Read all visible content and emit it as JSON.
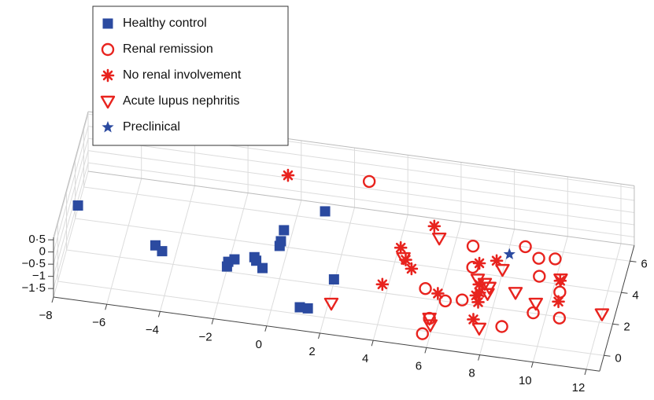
{
  "chart_data": {
    "type": "scatter3d",
    "xlim": [
      -8,
      12.5
    ],
    "ylim": [
      -1,
      7
    ],
    "zlim": [
      -1.85,
      0.6
    ],
    "xticks": [
      {
        "value": -8,
        "label": "−8"
      },
      {
        "value": -6,
        "label": "−6"
      },
      {
        "value": -4,
        "label": "−4"
      },
      {
        "value": -2,
        "label": "−2"
      },
      0,
      2,
      4,
      6,
      8,
      10,
      12
    ],
    "yticks": [
      0,
      2,
      4,
      6
    ],
    "zticks": [
      {
        "value": 0.5,
        "label": "0·5"
      },
      0,
      {
        "value": -0.5,
        "label": "−0·5"
      },
      {
        "value": -1,
        "label": "−1"
      },
      {
        "value": -1.5,
        "label": "−1·5"
      }
    ],
    "grid": true,
    "legend": "upper left",
    "series": [
      {
        "name": "Healthy control",
        "color": "#2b4aa0",
        "marker": "square",
        "x": [
          -7.7,
          -4.5,
          -4.2,
          -1.7,
          -1.7,
          -1.5,
          -0.8,
          -0.7,
          -0.4,
          0.0,
          0.0,
          0.0,
          1.3,
          2.3,
          1.1,
          1.4
        ],
        "y": [
          2.8,
          1.0,
          0.7,
          0.3,
          0.6,
          0.8,
          1.1,
          0.9,
          0.5,
          2.0,
          2.3,
          3.0,
          4.5,
          0.4,
          -0.1,
          -0.1
        ],
        "z": [
          -0.5,
          -0.5,
          -0.5,
          -0.5,
          -0.5,
          -0.5,
          -0.5,
          -0.5,
          -0.5,
          -0.5,
          -0.5,
          -0.5,
          -0.5,
          -0.5,
          -1.5,
          -1.5
        ]
      },
      {
        "name": "Renal remission",
        "color": "#e8231e",
        "marker": "circle",
        "x": [
          2.6,
          7.0,
          8.9,
          9.5,
          10.1,
          7.2,
          9.7,
          5.7,
          6.3,
          6.9,
          10.6,
          9.6,
          10.6,
          8.6,
          5.9,
          5.8
        ],
        "y": [
          6.7,
          3.6,
          4.0,
          3.4,
          3.5,
          2.3,
          2.3,
          0.6,
          1.5,
          1.7,
          1.5,
          1.5,
          1.4,
          0.4,
          0.3,
          -0.7
        ],
        "z": [
          -0.5,
          -0.5,
          -0.5,
          -0.5,
          -0.5,
          -0.5,
          -0.5,
          -0.5,
          -1.5,
          -1.5,
          -0.5,
          -1.5,
          -1.5,
          -1.5,
          -1.5,
          -1.5
        ]
      },
      {
        "name": "No renal involvement",
        "color": "#e8231e",
        "marker": "asterisk",
        "x": [
          -0.4,
          5.4,
          4.4,
          4.7,
          5.0,
          4.1,
          8.0,
          7.4,
          7.6,
          6.2,
          7.6,
          7.7,
          7.5,
          10.5,
          10.4,
          7.5
        ],
        "y": [
          6.4,
          4.5,
          2.9,
          2.2,
          1.7,
          0.5,
          2.9,
          2.6,
          1.3,
          0.4,
          0.6,
          0.8,
          1.7,
          2.2,
          2.4,
          0.6
        ],
        "z": [
          -0.5,
          -0.5,
          -0.5,
          -0.5,
          -0.5,
          -0.5,
          -0.5,
          -0.5,
          -0.5,
          -0.5,
          -0.5,
          -0.5,
          -1.5,
          -0.5,
          -1.5,
          -1.5
        ]
      },
      {
        "name": "Acute lupus nephritis",
        "color": "#e8231e",
        "marker": "triangle",
        "x": [
          5.7,
          4.6,
          2.2,
          7.5,
          7.8,
          8.0,
          8.0,
          9.0,
          8.3,
          10.5,
          9.6,
          12.1,
          5.9,
          6.0,
          7.8
        ],
        "y": [
          3.8,
          2.3,
          0.4,
          1.6,
          1.4,
          1.2,
          0.8,
          1.1,
          2.4,
          2.3,
          2.1,
          2.0,
          0.3,
          -0.1,
          0.1
        ],
        "z": [
          -0.5,
          -0.5,
          -1.5,
          -0.5,
          -0.5,
          -0.5,
          -0.5,
          -0.5,
          -0.5,
          -0.5,
          -1.5,
          -1.5,
          -1.5,
          -1.5,
          -1.5
        ]
      },
      {
        "name": "Preclinical",
        "color": "#2b4aa0",
        "marker": "star",
        "x": [
          8.4
        ],
        "y": [
          3.4
        ],
        "z": [
          -0.5
        ]
      }
    ]
  }
}
